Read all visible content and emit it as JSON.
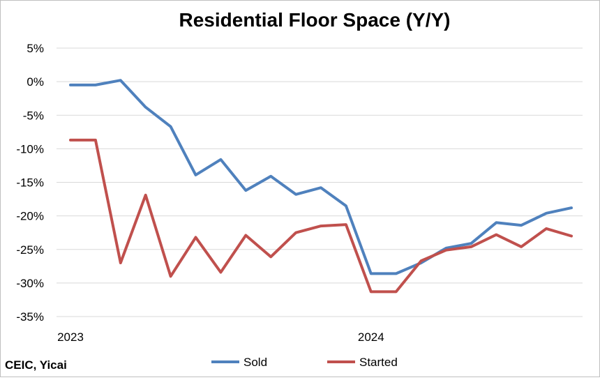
{
  "chart_data": {
    "type": "line",
    "title": "Residential Floor Space (Y/Y)",
    "xlabel": "",
    "ylabel": "",
    "x_tick_labels": [
      "2023",
      "2024"
    ],
    "y_ticks": [
      5,
      0,
      -5,
      -10,
      -15,
      -20,
      -25,
      -30,
      -35
    ],
    "y_tick_labels": [
      "5%",
      "0%",
      "-5%",
      "-10%",
      "-15%",
      "-20%",
      "-25%",
      "-30%",
      "-35%"
    ],
    "ylim": [
      -35,
      5
    ],
    "grid": "horizontal",
    "legend_position": "bottom",
    "source": "CEIC, Yicai",
    "series": [
      {
        "name": "Sold",
        "color": "#4f81bd",
        "values": [
          -0.5,
          -0.5,
          0.2,
          -3.8,
          -6.7,
          -13.9,
          -11.6,
          -16.2,
          -14.1,
          -16.8,
          -15.8,
          -18.5,
          -28.6,
          -28.6,
          -27.0,
          -24.8,
          -24.1,
          -21.0,
          -21.4,
          -19.6,
          -18.8
        ]
      },
      {
        "name": "Started",
        "color": "#c0504d",
        "values": [
          -8.7,
          -8.7,
          -27.0,
          -16.9,
          -29.0,
          -23.2,
          -28.4,
          -22.9,
          -26.1,
          -22.5,
          -21.5,
          -21.3,
          -31.3,
          -31.3,
          -26.7,
          -25.1,
          -24.6,
          -22.8,
          -24.6,
          -21.9,
          -23.0
        ]
      }
    ]
  }
}
